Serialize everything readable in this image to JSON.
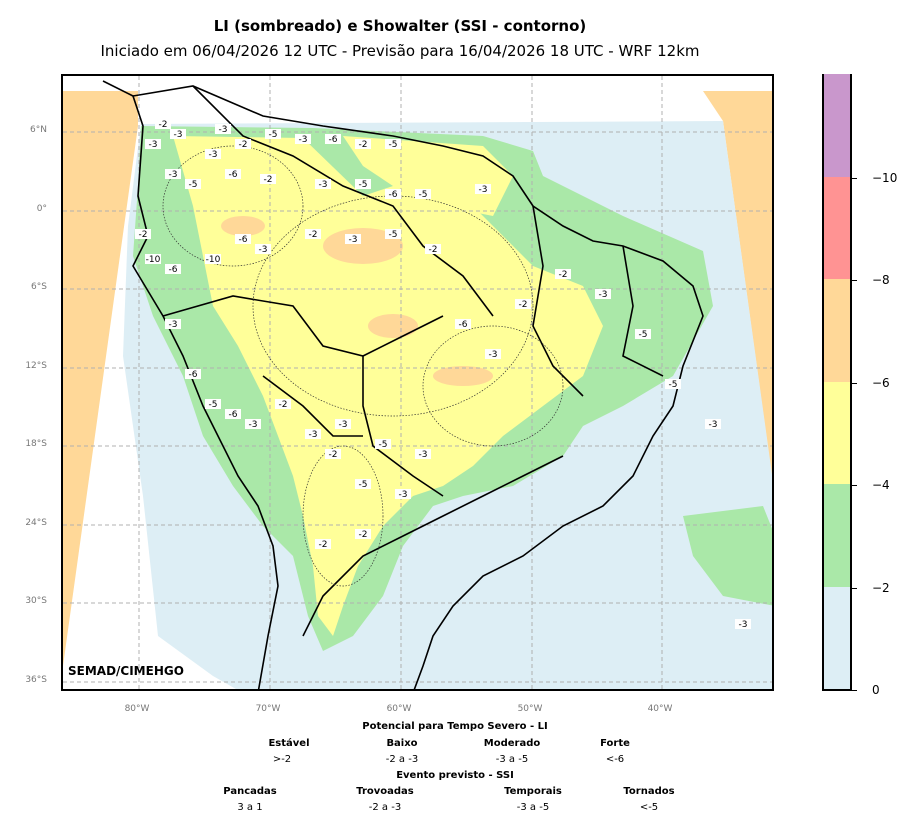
{
  "title": "LI (sombreado) e Showalter (SSI - contorno)",
  "subtitle": "Iniciado em 06/04/2026 12 UTC - Previsão para 16/04/2026 18 UTC - WRF 12km",
  "watermark": "SEMAD/CIMEHGO",
  "lat_labels": [
    "6°N",
    "0°",
    "6°S",
    "12°S",
    "18°S",
    "24°S",
    "30°S",
    "36°S"
  ],
  "lon_labels": [
    "80°W",
    "70°W",
    "60°W",
    "50°W",
    "40°W"
  ],
  "colorbar": {
    "ticks": [
      "0",
      "−2",
      "−4",
      "−6",
      "−8",
      "−10"
    ],
    "bands": [
      "#ddeef5",
      "#aae8a8",
      "#ffff99",
      "#ffd898",
      "#ff9393",
      "#c997cc"
    ]
  },
  "legend": {
    "li_title": "Potencial para Tempo Severo - LI",
    "li_cats": [
      {
        "name": "Estável",
        "range": ">-2"
      },
      {
        "name": "Baixo",
        "range": "-2 a -3"
      },
      {
        "name": "Moderado",
        "range": "-3 a -5"
      },
      {
        "name": "Forte",
        "range": "<-6"
      }
    ],
    "ssi_title": "Evento previsto - SSI",
    "ssi_cats": [
      {
        "name": "Pancadas",
        "range": "3 a 1"
      },
      {
        "name": "Trovoadas",
        "range": "-2 a -3"
      },
      {
        "name": "Temporais",
        "range": "-3 a -5"
      },
      {
        "name": "Tornados",
        "range": "<-5"
      }
    ]
  },
  "contour_labels": [
    "-2",
    "-3",
    "-3",
    "-3",
    "-2",
    "-5",
    "-3",
    "-6",
    "-2",
    "-5",
    "-3",
    "-3",
    "-5",
    "-6",
    "-2",
    "-3",
    "-5",
    "-6",
    "-5",
    "-3",
    "-2",
    "-10",
    "-6",
    "-10",
    "-6",
    "-3",
    "-2",
    "-3",
    "-5",
    "-2",
    "-3",
    "-6",
    "-5",
    "-6",
    "-3",
    "-2",
    "-3",
    "-3",
    "-5",
    "-3",
    "-6",
    "-3",
    "-2",
    "-2",
    "-3",
    "-5",
    "-5",
    "-3",
    "-2",
    "-5",
    "-3",
    "-2",
    "-2",
    "-3"
  ]
}
